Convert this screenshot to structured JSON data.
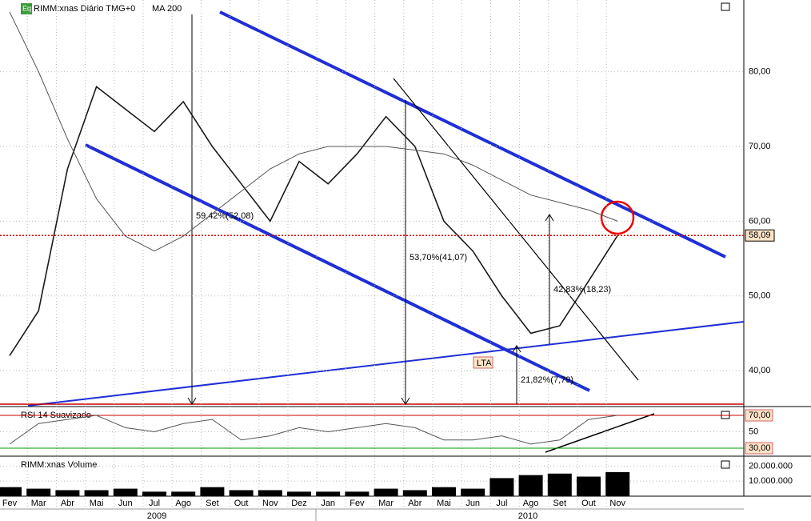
{
  "header": {
    "logo": "Eq",
    "symbol": "RIMM:xnas Diário TMG+0",
    "indicator": "MA 200"
  },
  "annotations": [
    "59,42%(52,08)",
    "53,70%(41,07)",
    "42,83%(18,23)",
    "21,82%(7,79)",
    "LTA"
  ],
  "years": [
    "2009",
    "2010"
  ],
  "chart_data": [
    {
      "type": "line",
      "title": "RIMM:xnas Diário TMG+0",
      "categories": [
        "Fev",
        "Mar",
        "Abr",
        "Mai",
        "Jun",
        "Jul",
        "Ago",
        "Set",
        "Out",
        "Nov",
        "Dez",
        "Jan",
        "Fev",
        "Mar",
        "Abr",
        "Mai",
        "Jun",
        "Jul",
        "Ago",
        "Set",
        "Out",
        "Nov"
      ],
      "series": [
        {
          "color": "#1a1a1a",
          "values": [
            42,
            48,
            67,
            78,
            75,
            72,
            76,
            70,
            65,
            60,
            68,
            65,
            69,
            74,
            70,
            60,
            56,
            50,
            45,
            46,
            52,
            58.09
          ]
        },
        {
          "name": "MA 200",
          "color": "#555555",
          "values": [
            88,
            80,
            71,
            63,
            58,
            56,
            58,
            61,
            64,
            67,
            69,
            70,
            70,
            70,
            69.5,
            69,
            67.5,
            65.5,
            63.5,
            62.5,
            61.5,
            60
          ]
        }
      ],
      "last_price": {
        "value": 58.09,
        "label": "58,09"
      },
      "ylim": [
        35.3,
        89.6
      ],
      "yticks": [
        {
          "value": 40,
          "label": "40,00"
        },
        {
          "value": 50,
          "label": "50,00"
        },
        {
          "value": 60,
          "label": "60,00"
        },
        {
          "value": 70,
          "label": "70,00"
        },
        {
          "value": 80,
          "label": "80,00"
        }
      ],
      "grid": true
    },
    {
      "type": "line",
      "title": "RSI 14 Suavizado",
      "series": [
        {
          "color": "#555555",
          "values": [
            35,
            60,
            65,
            70,
            55,
            50,
            60,
            65,
            40,
            45,
            55,
            50,
            55,
            60,
            55,
            40,
            40,
            45,
            35,
            40,
            65,
            70
          ]
        }
      ],
      "ylim": [
        22.2,
        78.8
      ],
      "yticks": [
        {
          "value": 70,
          "label": "70,00"
        },
        50,
        {
          "value": 30,
          "label": "30,00"
        }
      ]
    },
    {
      "type": "bar",
      "title": "RIMM:xnas Volume",
      "color": "#000000",
      "values": [
        6000000,
        5000000,
        4000000,
        4000000,
        5000000,
        3000000,
        3000000,
        6000000,
        4000000,
        4000000,
        3000000,
        3000000,
        3000000,
        5000000,
        4000000,
        6000000,
        5000000,
        12000000,
        14000000,
        15000000,
        13000000,
        16000000
      ],
      "ylim": [
        0,
        25500000
      ],
      "yticks": [
        {
          "value": 10000000,
          "label": "10.000.000"
        },
        {
          "value": 20000000,
          "label": "20.000.000"
        }
      ]
    }
  ]
}
